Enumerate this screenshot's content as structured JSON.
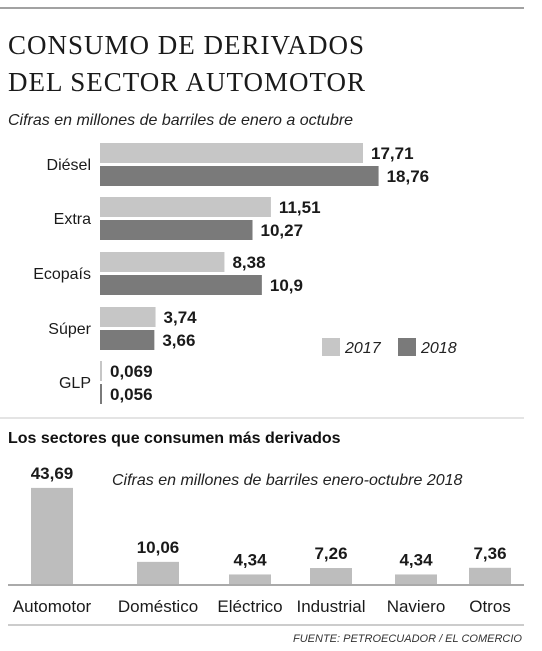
{
  "header": {
    "title_line1": "CONSUMO DE DERIVADOS",
    "title_line2": "DEL SECTOR AUTOMOTOR",
    "subtitle": "Cifras en millones de barriles de enero a octubre"
  },
  "colors": {
    "series_2017": "#c6c6c6",
    "series_2018": "#7a7a7a",
    "sectors": "#bdbdbd",
    "rule": "#444444"
  },
  "chart_data": [
    {
      "type": "bar",
      "orientation": "horizontal",
      "title": "CONSUMO DE DERIVADOS DEL SECTOR AUTOMOTOR",
      "subtitle": "Cifras en millones de barriles de enero a octubre",
      "categories": [
        "Diésel",
        "Extra",
        "Ecopaís",
        "Súper",
        "GLP"
      ],
      "series": [
        {
          "name": "2017",
          "values": [
            17.71,
            11.51,
            8.38,
            3.74,
            0.069
          ],
          "labels": [
            "17,71",
            "11,51",
            "8,38",
            "3,74",
            "0,069"
          ]
        },
        {
          "name": "2018",
          "values": [
            18.76,
            10.27,
            10.9,
            3.66,
            0.056
          ],
          "labels": [
            "18,76",
            "10,27",
            "10,9",
            "3,66",
            "0,056"
          ]
        }
      ],
      "legend": [
        "2017",
        "2018"
      ],
      "legend_position": "right"
    },
    {
      "type": "bar",
      "orientation": "vertical",
      "title": "Los sectores que consumen más derivados",
      "subtitle": "Cifras en millones de barriles enero-octubre 2018",
      "categories": [
        "Automotor",
        "Doméstico",
        "Eléctrico",
        "Industrial",
        "Naviero",
        "Otros"
      ],
      "values": [
        43.69,
        10.06,
        4.34,
        7.26,
        4.34,
        7.36
      ],
      "labels": [
        "43,69",
        "10,06",
        "4,34",
        "7,26",
        "4,34",
        "7,36"
      ]
    }
  ],
  "footer": {
    "source": "FUENTE: PETROECUADOR / EL COMERCIO"
  }
}
